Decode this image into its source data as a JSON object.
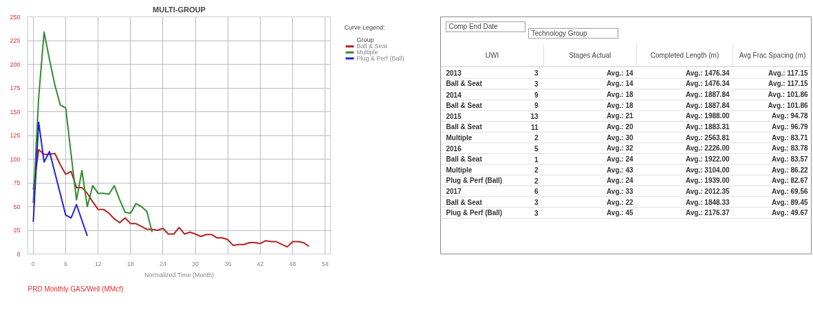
{
  "chart_data": [
    {
      "type": "line",
      "title": "MULTI-GROUP",
      "xlabel": "Normalized Time (Month)",
      "legend_title": "Group",
      "annotations": [
        "Curve Legend:",
        "PRD Monthly GAS/Well (MMcf)"
      ],
      "xlim": [
        -1,
        55
      ],
      "xticks": [
        0,
        6,
        12,
        18,
        24,
        30,
        36,
        42,
        48,
        54
      ],
      "ylim": [
        0,
        250
      ],
      "yticks": [
        0,
        25,
        50,
        75,
        100,
        125,
        150,
        175,
        200,
        225,
        250
      ],
      "grid": true,
      "legend": "top right",
      "series": [
        {
          "name": "Ball & Seat",
          "color": "#b22222",
          "x": [
            0,
            1,
            2,
            3,
            4,
            5,
            6,
            7,
            8,
            9,
            10,
            11,
            12,
            13,
            14,
            15,
            16,
            17,
            18,
            19,
            20,
            21,
            22,
            23,
            24,
            25,
            26,
            27,
            28,
            29,
            30,
            31,
            32,
            33,
            34,
            35,
            36,
            37,
            38,
            39,
            40,
            41,
            42,
            43,
            44,
            45,
            46,
            47,
            48,
            49,
            50,
            51
          ],
          "values": [
            68,
            110,
            105,
            105,
            106,
            94,
            84,
            87,
            70,
            70,
            64,
            55,
            47,
            47,
            43,
            37,
            33,
            38,
            32,
            32,
            29,
            26,
            26,
            25,
            27,
            21,
            21,
            28,
            21,
            23,
            21,
            18.5,
            20.5,
            20.5,
            17,
            17,
            15,
            9,
            10,
            10,
            12,
            12,
            11,
            14,
            13,
            13,
            10,
            7.5,
            13,
            13,
            12,
            8
          ]
        },
        {
          "name": "Multiple",
          "color": "#2e8b2e",
          "x": [
            0,
            1,
            2,
            3,
            4,
            5,
            6,
            7,
            8,
            9,
            10,
            11,
            12,
            13,
            14,
            15,
            16,
            17,
            18,
            19,
            20,
            21,
            22
          ],
          "values": [
            54,
            165,
            234,
            205,
            178,
            157,
            154,
            105,
            57,
            88,
            50,
            72,
            64,
            64,
            63,
            72,
            57,
            44,
            43,
            53,
            50,
            45,
            23
          ]
        },
        {
          "name": "Plug & Perf (Ball)",
          "color": "#1f1fe0",
          "x": [
            0,
            1,
            2,
            3,
            6,
            7,
            8,
            10
          ],
          "values": [
            34,
            139,
            97,
            108,
            41,
            38,
            52,
            19
          ]
        }
      ]
    },
    {
      "type": "other",
      "annotations": [
        "Comp End Date",
        "Technology Group",
        "UWI",
        "Stages Actual",
        "Completed Length (m)",
        "Avg Frac Spacing (m)",
        "2013",
        "3",
        "Avg.: 14",
        "Avg.: 1476.34",
        "Avg.: 117.15",
        "Ball & Seat",
        "3",
        "Avg.: 14",
        "Avg.: 1476.34",
        "Avg.: 117.15",
        "2014",
        "9",
        "Avg.: 18",
        "Avg.: 1887.84",
        "Avg.: 101.86",
        "Ball & Seat",
        "9",
        "Avg.: 18",
        "Avg.: 1887.84",
        "Avg.: 101.86",
        "2015",
        "13",
        "Avg.: 21",
        "Avg.: 1988.00",
        "Avg.: 94.78",
        "Ball & Seat",
        "11",
        "Avg.: 20",
        "Avg.: 1883.31",
        "Avg.: 96.79",
        "Multiple",
        "2",
        "Avg.: 30",
        "Avg.: 2563.81",
        "Avg.: 83.71",
        "2016",
        "5",
        "Avg.: 32",
        "Avg.: 2226.00",
        "Avg.: 83.78",
        "Ball & Seat",
        "1",
        "Avg.: 24",
        "Avg.: 1922.00",
        "Avg.: 83.57",
        "Multiple",
        "2",
        "Avg.: 43",
        "Avg.: 3104.00",
        "Avg.: 86.22",
        "Plug & Perf (Ball)",
        "2",
        "Avg.: 24",
        "Avg.: 1939.00",
        "Avg.: 82.67",
        "2017",
        "6",
        "Avg.: 33",
        "Avg.: 2012.35",
        "Avg.: 69.56",
        "Ball & Seat",
        "3",
        "Avg.: 22",
        "Avg.: 1848.33",
        "Avg.: 89.45",
        "Plug & Perf (Ball)",
        "3",
        "Avg.: 45",
        "Avg.: 2176.37",
        "Avg.: 49.67"
      ]
    }
  ]
}
